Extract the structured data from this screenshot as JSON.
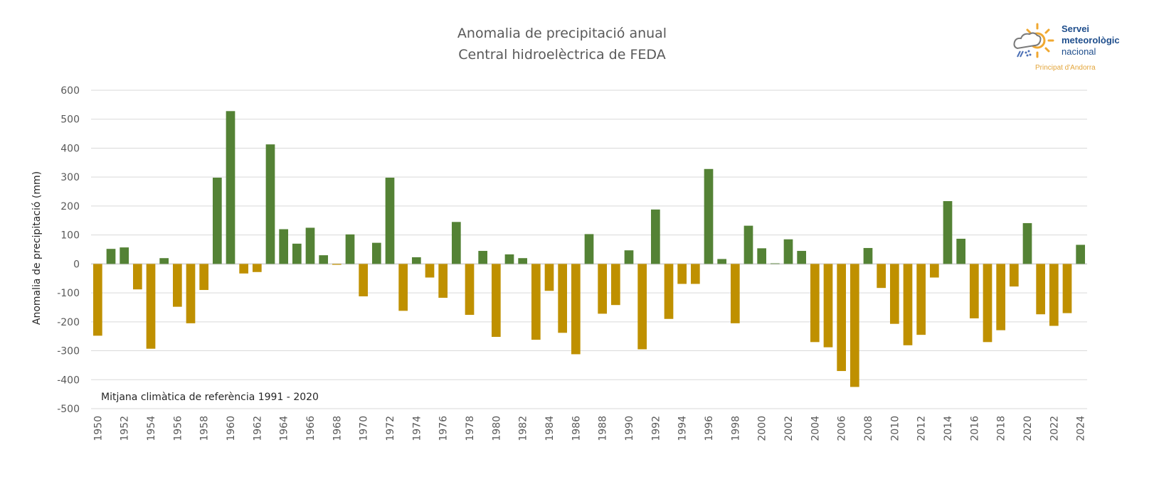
{
  "chart_data": {
    "type": "bar",
    "title": "Anomalia de precipitació anual",
    "subtitle": "Central hidroelèctrica de FEDA",
    "xlabel": "",
    "ylabel": "Anomalia de precipitació (mm)",
    "ylim": [
      -500,
      600
    ],
    "yticks": [
      600,
      500,
      400,
      300,
      200,
      100,
      0,
      -100,
      -200,
      -300,
      -400,
      -500
    ],
    "grid": true,
    "annotation": "Mitjana climàtica de referència 1991 - 2020",
    "colors": {
      "positive": "#548235",
      "negative": "#BF9000"
    },
    "categories": [
      1950,
      1951,
      1952,
      1953,
      1954,
      1955,
      1956,
      1957,
      1958,
      1959,
      1960,
      1961,
      1962,
      1963,
      1964,
      1965,
      1966,
      1967,
      1968,
      1969,
      1970,
      1971,
      1972,
      1973,
      1974,
      1975,
      1976,
      1977,
      1978,
      1979,
      1980,
      1981,
      1982,
      1983,
      1984,
      1985,
      1986,
      1987,
      1988,
      1989,
      1990,
      1991,
      1992,
      1993,
      1994,
      1995,
      1996,
      1997,
      1998,
      1999,
      2000,
      2001,
      2002,
      2003,
      2004,
      2005,
      2006,
      2007,
      2008,
      2009,
      2010,
      2011,
      2012,
      2013,
      2014,
      2015,
      2016,
      2017,
      2018,
      2019,
      2020,
      2021,
      2022,
      2023,
      2024
    ],
    "values": [
      -248,
      52,
      57,
      -88,
      -293,
      20,
      -148,
      -205,
      -90,
      298,
      528,
      -33,
      -28,
      413,
      120,
      70,
      125,
      30,
      -3,
      102,
      -112,
      73,
      298,
      -162,
      23,
      -47,
      -117,
      145,
      -176,
      45,
      -252,
      33,
      20,
      -262,
      -93,
      -238,
      -312,
      103,
      -172,
      -142,
      47,
      -295,
      188,
      -190,
      -69,
      -69,
      328,
      17,
      -205,
      132,
      54,
      2,
      85,
      45,
      -270,
      -288,
      -370,
      -425,
      55,
      -83,
      -207,
      -281,
      -245,
      -47,
      217,
      87,
      -188,
      -270,
      -229,
      -78,
      141,
      -174,
      -214,
      -170,
      66
    ],
    "xtick_labels": [
      "1950",
      "1952",
      "1954",
      "1956",
      "1958",
      "1960",
      "1962",
      "1964",
      "1966",
      "1968",
      "1970",
      "1972",
      "1974",
      "1976",
      "1978",
      "1980",
      "1982",
      "1984",
      "1986",
      "1988",
      "1990",
      "1992",
      "1994",
      "1996",
      "1998",
      "2000",
      "2002",
      "2004",
      "2006",
      "2008",
      "2010",
      "2012",
      "2014",
      "2016",
      "2018",
      "2020",
      "2022",
      "2024"
    ]
  },
  "logo": {
    "line1": "Servei",
    "line2": "meteorològic",
    "line3": "nacional",
    "subtitle": "Principat d'Andorra"
  }
}
